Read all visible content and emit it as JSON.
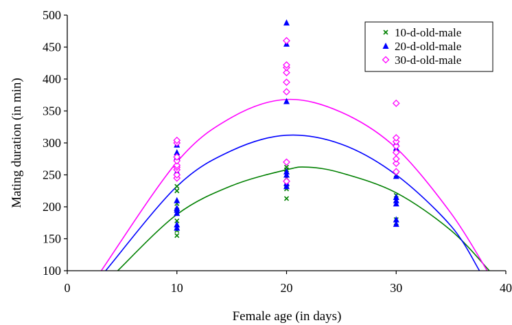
{
  "chart_data": {
    "type": "scatter",
    "title": "",
    "xlabel": "Female age (in days)",
    "ylabel": "Mating duration (in min)",
    "xlim": [
      0,
      40
    ],
    "ylim": [
      100,
      500
    ],
    "xticks": [
      0,
      10,
      20,
      30,
      40
    ],
    "yticks": [
      100,
      150,
      200,
      250,
      300,
      350,
      400,
      450,
      500
    ],
    "grid": false,
    "legend_position": "top-right",
    "series": [
      {
        "name": "10-d-old-male",
        "color": "#008000",
        "marker": "x",
        "points": [
          [
            10,
            155
          ],
          [
            10,
            163
          ],
          [
            10,
            178
          ],
          [
            10,
            190
          ],
          [
            10,
            195
          ],
          [
            10,
            205
          ],
          [
            10,
            225
          ],
          [
            10,
            232
          ],
          [
            20,
            213
          ],
          [
            20,
            228
          ],
          [
            20,
            235
          ],
          [
            20,
            245
          ],
          [
            20,
            250
          ],
          [
            20,
            258
          ],
          [
            20,
            262
          ],
          [
            30,
            175
          ],
          [
            30,
            180
          ],
          [
            30,
            205
          ],
          [
            30,
            210
          ],
          [
            30,
            218
          ],
          [
            30,
            250
          ],
          [
            30,
            292
          ]
        ],
        "trend": [
          [
            4.6,
            100
          ],
          [
            10,
            188
          ],
          [
            15,
            233
          ],
          [
            20,
            258
          ],
          [
            22,
            262
          ],
          [
            25,
            253
          ],
          [
            30,
            222
          ],
          [
            35,
            163
          ],
          [
            38.5,
            100
          ]
        ]
      },
      {
        "name": "20-d-old-male",
        "color": "#0000ff",
        "marker": "triangle",
        "points": [
          [
            10,
            167
          ],
          [
            10,
            172
          ],
          [
            10,
            190
          ],
          [
            10,
            195
          ],
          [
            10,
            198
          ],
          [
            10,
            210
          ],
          [
            10,
            248
          ],
          [
            10,
            255
          ],
          [
            10,
            278
          ],
          [
            10,
            285
          ],
          [
            10,
            297
          ],
          [
            20,
            232
          ],
          [
            20,
            237
          ],
          [
            20,
            250
          ],
          [
            20,
            255
          ],
          [
            20,
            365
          ],
          [
            20,
            455
          ],
          [
            20,
            488
          ],
          [
            30,
            173
          ],
          [
            30,
            180
          ],
          [
            30,
            205
          ],
          [
            30,
            210
          ],
          [
            30,
            215
          ],
          [
            30,
            248
          ],
          [
            30,
            292
          ],
          [
            30,
            300
          ]
        ],
        "trend": [
          [
            3.5,
            100
          ],
          [
            10,
            232
          ],
          [
            15,
            288
          ],
          [
            20,
            312
          ],
          [
            25,
            298
          ],
          [
            30,
            250
          ],
          [
            35,
            170
          ],
          [
            37.6,
            100
          ]
        ]
      },
      {
        "name": "30-d-old-male",
        "color": "#ff00ff",
        "marker": "diamond",
        "points": [
          [
            10,
            245
          ],
          [
            10,
            250
          ],
          [
            10,
            258
          ],
          [
            10,
            262
          ],
          [
            10,
            265
          ],
          [
            10,
            272
          ],
          [
            10,
            278
          ],
          [
            10,
            300
          ],
          [
            10,
            304
          ],
          [
            20,
            240
          ],
          [
            20,
            270
          ],
          [
            20,
            380
          ],
          [
            20,
            395
          ],
          [
            20,
            410
          ],
          [
            20,
            418
          ],
          [
            20,
            422
          ],
          [
            20,
            460
          ],
          [
            30,
            255
          ],
          [
            30,
            268
          ],
          [
            30,
            275
          ],
          [
            30,
            285
          ],
          [
            30,
            295
          ],
          [
            30,
            302
          ],
          [
            30,
            308
          ],
          [
            30,
            362
          ]
        ],
        "trend": [
          [
            3.1,
            100
          ],
          [
            10,
            270
          ],
          [
            15,
            340
          ],
          [
            20,
            368
          ],
          [
            25,
            348
          ],
          [
            30,
            292
          ],
          [
            35,
            190
          ],
          [
            38.3,
            100
          ]
        ]
      }
    ]
  }
}
